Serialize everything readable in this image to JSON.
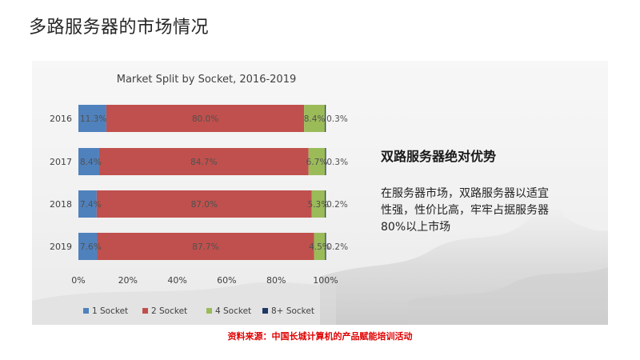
{
  "slide": {
    "title": "多路服务器的市场情况"
  },
  "side": {
    "heading": "双路服务器绝对优势",
    "lines": [
      "在服务器市场，双路服务器以适宜",
      "性强，性价比高，牢牢占据服务器",
      "80%以上市场"
    ]
  },
  "source": "资料来源：中国长城计算机的产品赋能培训活动",
  "colors": {
    "socket1": "#4f81bd",
    "socket2": "#c0504d",
    "socket4": "#9bbb59",
    "socket8": "#1f3864",
    "title_red": "#e00000"
  },
  "chart_data": {
    "type": "bar",
    "orientation": "horizontal",
    "stacked": true,
    "normalized": true,
    "title": "Market Split by Socket, 2016-2019",
    "categories": [
      "2016",
      "2017",
      "2018",
      "2019"
    ],
    "series": [
      {
        "name": "1 Socket",
        "color": "#4f81bd",
        "values": [
          11.3,
          8.4,
          7.4,
          7.6
        ],
        "labels": [
          "11.3%",
          "8.4%",
          "7.4%",
          "7.6%"
        ]
      },
      {
        "name": "2 Socket",
        "color": "#c0504d",
        "values": [
          80.0,
          84.7,
          87.0,
          87.7
        ],
        "labels": [
          "80.0%",
          "84.7%",
          "87.0%",
          "87.7%"
        ]
      },
      {
        "name": "4 Socket",
        "color": "#9bbb59",
        "values": [
          8.4,
          6.7,
          5.3,
          4.5
        ],
        "labels": [
          "8.4%",
          "6.7%",
          "5.3%",
          "4.5%"
        ]
      },
      {
        "name": "8+ Socket",
        "color": "#1f3864",
        "values": [
          0.3,
          0.3,
          0.2,
          0.2
        ],
        "labels": [
          "0.3%",
          "0.3%",
          "0.2%",
          "0.2%"
        ]
      }
    ],
    "xlim": [
      0,
      100
    ],
    "xticks": [
      0,
      20,
      40,
      60,
      80,
      100
    ],
    "xtick_labels": [
      "0%",
      "20%",
      "40%",
      "60%",
      "80%",
      "100%"
    ],
    "grid": false,
    "legend": "bottom"
  }
}
